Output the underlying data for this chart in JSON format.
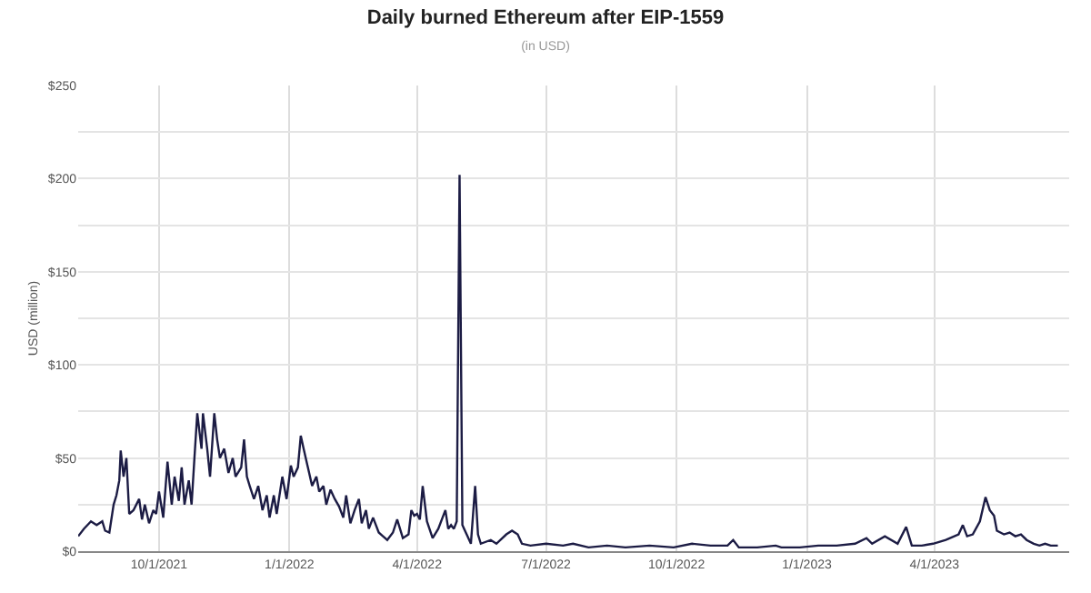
{
  "chart_data": {
    "type": "line",
    "title": "Daily burned Ethereum after EIP-1559",
    "subtitle": "(in USD)",
    "ylabel": "USD (million)",
    "series": [
      {
        "color": "#1c1c44",
        "x": [
          "2021-08-05",
          "2021-08-09",
          "2021-08-14",
          "2021-08-18",
          "2021-08-22",
          "2021-08-24",
          "2021-08-27",
          "2021-08-30",
          "2021-09-01",
          "2021-09-03",
          "2021-09-04",
          "2021-09-06",
          "2021-09-08",
          "2021-09-10",
          "2021-09-13",
          "2021-09-17",
          "2021-09-19",
          "2021-09-21",
          "2021-09-24",
          "2021-09-27",
          "2021-09-29",
          "2021-10-01",
          "2021-10-04",
          "2021-10-07",
          "2021-10-10",
          "2021-10-12",
          "2021-10-15",
          "2021-10-17",
          "2021-10-19",
          "2021-10-22",
          "2021-10-24",
          "2021-10-26",
          "2021-10-28",
          "2021-10-31",
          "2021-11-01",
          "2021-11-04",
          "2021-11-06",
          "2021-11-09",
          "2021-11-11",
          "2021-11-13",
          "2021-11-16",
          "2021-11-19",
          "2021-11-22",
          "2021-11-24",
          "2021-11-28",
          "2021-11-30",
          "2021-12-02",
          "2021-12-04",
          "2021-12-07",
          "2021-12-10",
          "2021-12-13",
          "2021-12-16",
          "2021-12-18",
          "2021-12-21",
          "2021-12-23",
          "2021-12-27",
          "2021-12-30",
          "2022-01-02",
          "2022-01-04",
          "2022-01-07",
          "2022-01-09",
          "2022-01-11",
          "2022-01-14",
          "2022-01-17",
          "2022-01-20",
          "2022-01-22",
          "2022-01-25",
          "2022-01-27",
          "2022-01-30",
          "2022-02-02",
          "2022-02-05",
          "2022-02-08",
          "2022-02-10",
          "2022-02-13",
          "2022-02-16",
          "2022-02-19",
          "2022-02-21",
          "2022-02-24",
          "2022-02-26",
          "2022-03-01",
          "2022-03-05",
          "2022-03-08",
          "2022-03-11",
          "2022-03-15",
          "2022-03-18",
          "2022-03-22",
          "2022-03-26",
          "2022-03-28",
          "2022-03-30",
          "2022-04-01",
          "2022-04-03",
          "2022-04-05",
          "2022-04-08",
          "2022-04-12",
          "2022-04-16",
          "2022-04-21",
          "2022-04-23",
          "2022-04-25",
          "2022-04-27",
          "2022-04-29",
          "2022-05-01",
          "2022-05-03",
          "2022-05-06",
          "2022-05-09",
          "2022-05-12",
          "2022-05-14",
          "2022-05-16",
          "2022-05-23",
          "2022-05-27",
          "2022-06-03",
          "2022-06-07",
          "2022-06-11",
          "2022-06-14",
          "2022-06-20",
          "2022-07-01",
          "2022-07-13",
          "2022-07-20",
          "2022-07-31",
          "2022-08-13",
          "2022-08-26",
          "2022-09-12",
          "2022-09-29",
          "2022-10-12",
          "2022-10-25",
          "2022-11-06",
          "2022-11-10",
          "2022-11-14",
          "2022-11-27",
          "2022-12-10",
          "2022-12-14",
          "2022-12-27",
          "2023-01-09",
          "2023-01-22",
          "2023-02-04",
          "2023-02-12",
          "2023-02-16",
          "2023-02-25",
          "2023-03-06",
          "2023-03-12",
          "2023-03-16",
          "2023-03-23",
          "2023-03-31",
          "2023-04-09",
          "2023-04-18",
          "2023-04-21",
          "2023-04-24",
          "2023-04-28",
          "2023-05-03",
          "2023-05-07",
          "2023-05-10",
          "2023-05-13",
          "2023-05-15",
          "2023-05-20",
          "2023-05-24",
          "2023-05-28",
          "2023-06-01",
          "2023-06-05",
          "2023-06-10",
          "2023-06-14",
          "2023-06-18",
          "2023-06-22",
          "2023-06-27"
        ],
        "values": [
          8,
          12,
          16,
          14,
          16,
          11,
          10,
          25,
          30,
          38,
          54,
          40,
          50,
          20,
          22,
          28,
          17,
          25,
          15,
          22,
          20,
          32,
          18,
          48,
          25,
          40,
          27,
          45,
          25,
          38,
          25,
          50,
          74,
          55,
          74,
          55,
          40,
          74,
          60,
          50,
          55,
          42,
          50,
          40,
          45,
          60,
          40,
          35,
          28,
          35,
          22,
          30,
          18,
          30,
          20,
          40,
          28,
          46,
          40,
          45,
          62,
          55,
          45,
          35,
          40,
          32,
          35,
          25,
          33,
          28,
          24,
          18,
          30,
          15,
          22,
          28,
          15,
          22,
          12,
          18,
          10,
          8,
          6,
          10,
          17,
          7,
          9,
          22,
          19,
          20,
          17,
          35,
          16,
          7,
          12,
          22,
          12,
          14,
          12,
          16,
          202,
          14,
          9,
          4,
          35,
          9,
          4,
          6,
          4,
          9,
          11,
          9,
          4,
          3,
          4,
          3,
          4,
          2,
          3,
          2,
          3,
          2,
          4,
          3,
          3,
          6,
          2,
          2,
          3,
          2,
          2,
          3,
          3,
          4,
          7,
          4,
          8,
          4,
          13,
          3,
          3,
          4,
          6,
          9,
          14,
          8,
          9,
          16,
          29,
          22,
          19,
          11,
          9,
          10,
          8,
          9,
          6,
          4,
          3,
          4,
          3,
          3
        ]
      }
    ],
    "xlim": [
      "2021-08-05",
      "2023-07-05"
    ],
    "xticks": [
      {
        "value": "2021-10-01",
        "label": "10/1/2021"
      },
      {
        "value": "2022-01-01",
        "label": "1/1/2022"
      },
      {
        "value": "2022-04-01",
        "label": "4/1/2022"
      },
      {
        "value": "2022-07-01",
        "label": "7/1/2022"
      },
      {
        "value": "2022-10-01",
        "label": "10/1/2022"
      },
      {
        "value": "2023-01-01",
        "label": "1/1/2023"
      },
      {
        "value": "2023-04-01",
        "label": "4/1/2023"
      }
    ],
    "ylim": [
      0,
      250
    ],
    "yticks": [
      {
        "value": 0,
        "label": "$0"
      },
      {
        "value": 25,
        "label": null
      },
      {
        "value": 50,
        "label": "$50"
      },
      {
        "value": 75,
        "label": null
      },
      {
        "value": 100,
        "label": "$100"
      },
      {
        "value": 125,
        "label": null
      },
      {
        "value": 150,
        "label": "$150"
      },
      {
        "value": 175,
        "label": null
      },
      {
        "value": 200,
        "label": "$200"
      },
      {
        "value": 225,
        "label": null
      },
      {
        "value": 250,
        "label": "$250"
      }
    ],
    "grid": true,
    "marker": "none",
    "line_style": "solid"
  }
}
